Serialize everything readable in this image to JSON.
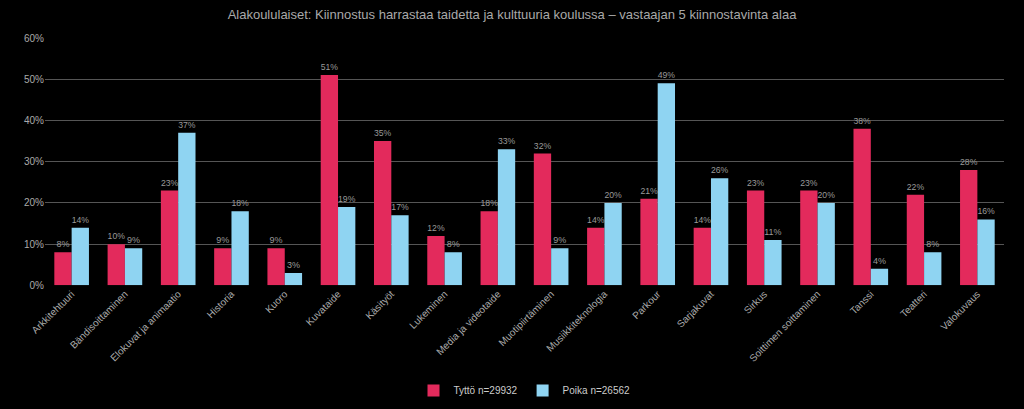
{
  "chart_data": {
    "type": "bar",
    "title": "Alakoululaiset: Kiinnostus harrastaa taidetta ja kulttuuria koulussa – vastaajan 5 kiinnostavinta alaa",
    "categories": [
      "Arkkitehtuuri",
      "Bändisoittaminen",
      "Elokuvat ja animaatio",
      "Historia",
      "Kuoro",
      "Kuvataide",
      "Käsityöt",
      "Lukeminen",
      "Media ja videotaide",
      "Muotipiirtäminen",
      "Musiikkiteknologia",
      "Parkour",
      "Sarjakuvat",
      "Sirkus",
      "Soittimen soittaminen",
      "Tanssi",
      "Teatteri",
      "Valokuvaus"
    ],
    "series": [
      {
        "name": "Tyttö n=29932",
        "color": "#e32a5c",
        "values": [
          8,
          10,
          23,
          9,
          9,
          51,
          35,
          12,
          18,
          32,
          14,
          21,
          14,
          23,
          23,
          38,
          22,
          28
        ],
        "value_labels": [
          "8%",
          "10%",
          "23%",
          "9%",
          "9%",
          "51%",
          "35%",
          "12%",
          "18%",
          "32%",
          "14%",
          "21%",
          "14%",
          "23%",
          "23%",
          "38%",
          "22%",
          "28%"
        ]
      },
      {
        "name": "Poika n=26562",
        "color": "#8fd4f2",
        "values": [
          14,
          9,
          37,
          18,
          3,
          19,
          17,
          8,
          33,
          9,
          20,
          49,
          26,
          11,
          20,
          4,
          8,
          16
        ],
        "value_labels": [
          "14%",
          "9%",
          "37%",
          "18%",
          "3%",
          "19%",
          "17%",
          "8%",
          "33%",
          "9%",
          "20%",
          "49%",
          "26%",
          "11%",
          "20%",
          "4%",
          "8%",
          "16%"
        ]
      }
    ],
    "ylim": [
      0,
      60
    ],
    "yticks": [
      {
        "value": 0,
        "label": "0%"
      },
      {
        "value": 10,
        "label": "10%"
      },
      {
        "value": 20,
        "label": "20%"
      },
      {
        "value": 30,
        "label": "30%"
      },
      {
        "value": 40,
        "label": "40%"
      },
      {
        "value": 50,
        "label": "50%"
      },
      {
        "value": 60,
        "label": "60%"
      }
    ],
    "grid": true,
    "legend": "bottom",
    "data_labels": true
  }
}
